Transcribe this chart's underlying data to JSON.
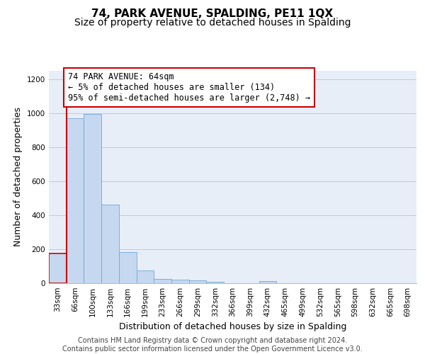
{
  "title": "74, PARK AVENUE, SPALDING, PE11 1QX",
  "subtitle": "Size of property relative to detached houses in Spalding",
  "xlabel": "Distribution of detached houses by size in Spalding",
  "ylabel": "Number of detached properties",
  "categories": [
    "33sqm",
    "66sqm",
    "100sqm",
    "133sqm",
    "166sqm",
    "199sqm",
    "233sqm",
    "266sqm",
    "299sqm",
    "332sqm",
    "366sqm",
    "399sqm",
    "432sqm",
    "465sqm",
    "499sqm",
    "532sqm",
    "565sqm",
    "598sqm",
    "632sqm",
    "665sqm",
    "698sqm"
  ],
  "values": [
    175,
    970,
    995,
    462,
    185,
    75,
    27,
    20,
    15,
    10,
    0,
    0,
    13,
    0,
    0,
    0,
    0,
    0,
    0,
    0,
    0
  ],
  "bar_color": "#c5d8f0",
  "bar_edge_color": "#6fa8d8",
  "marker_line_color": "#cc0000",
  "annotation_box_text": "74 PARK AVENUE: 64sqm\n← 5% of detached houses are smaller (134)\n95% of semi-detached houses are larger (2,748) →",
  "annotation_box_color": "#ffffff",
  "annotation_box_edge_color": "#cc0000",
  "ylim": [
    0,
    1250
  ],
  "yticks": [
    0,
    200,
    400,
    600,
    800,
    1000,
    1200
  ],
  "grid_color": "#c8c8c8",
  "background_color": "#e8eef8",
  "footer_text": "Contains HM Land Registry data © Crown copyright and database right 2024.\nContains public sector information licensed under the Open Government Licence v3.0.",
  "title_fontsize": 11,
  "subtitle_fontsize": 10,
  "xlabel_fontsize": 9,
  "ylabel_fontsize": 9,
  "tick_fontsize": 7.5,
  "annotation_fontsize": 8.5,
  "footer_fontsize": 7
}
